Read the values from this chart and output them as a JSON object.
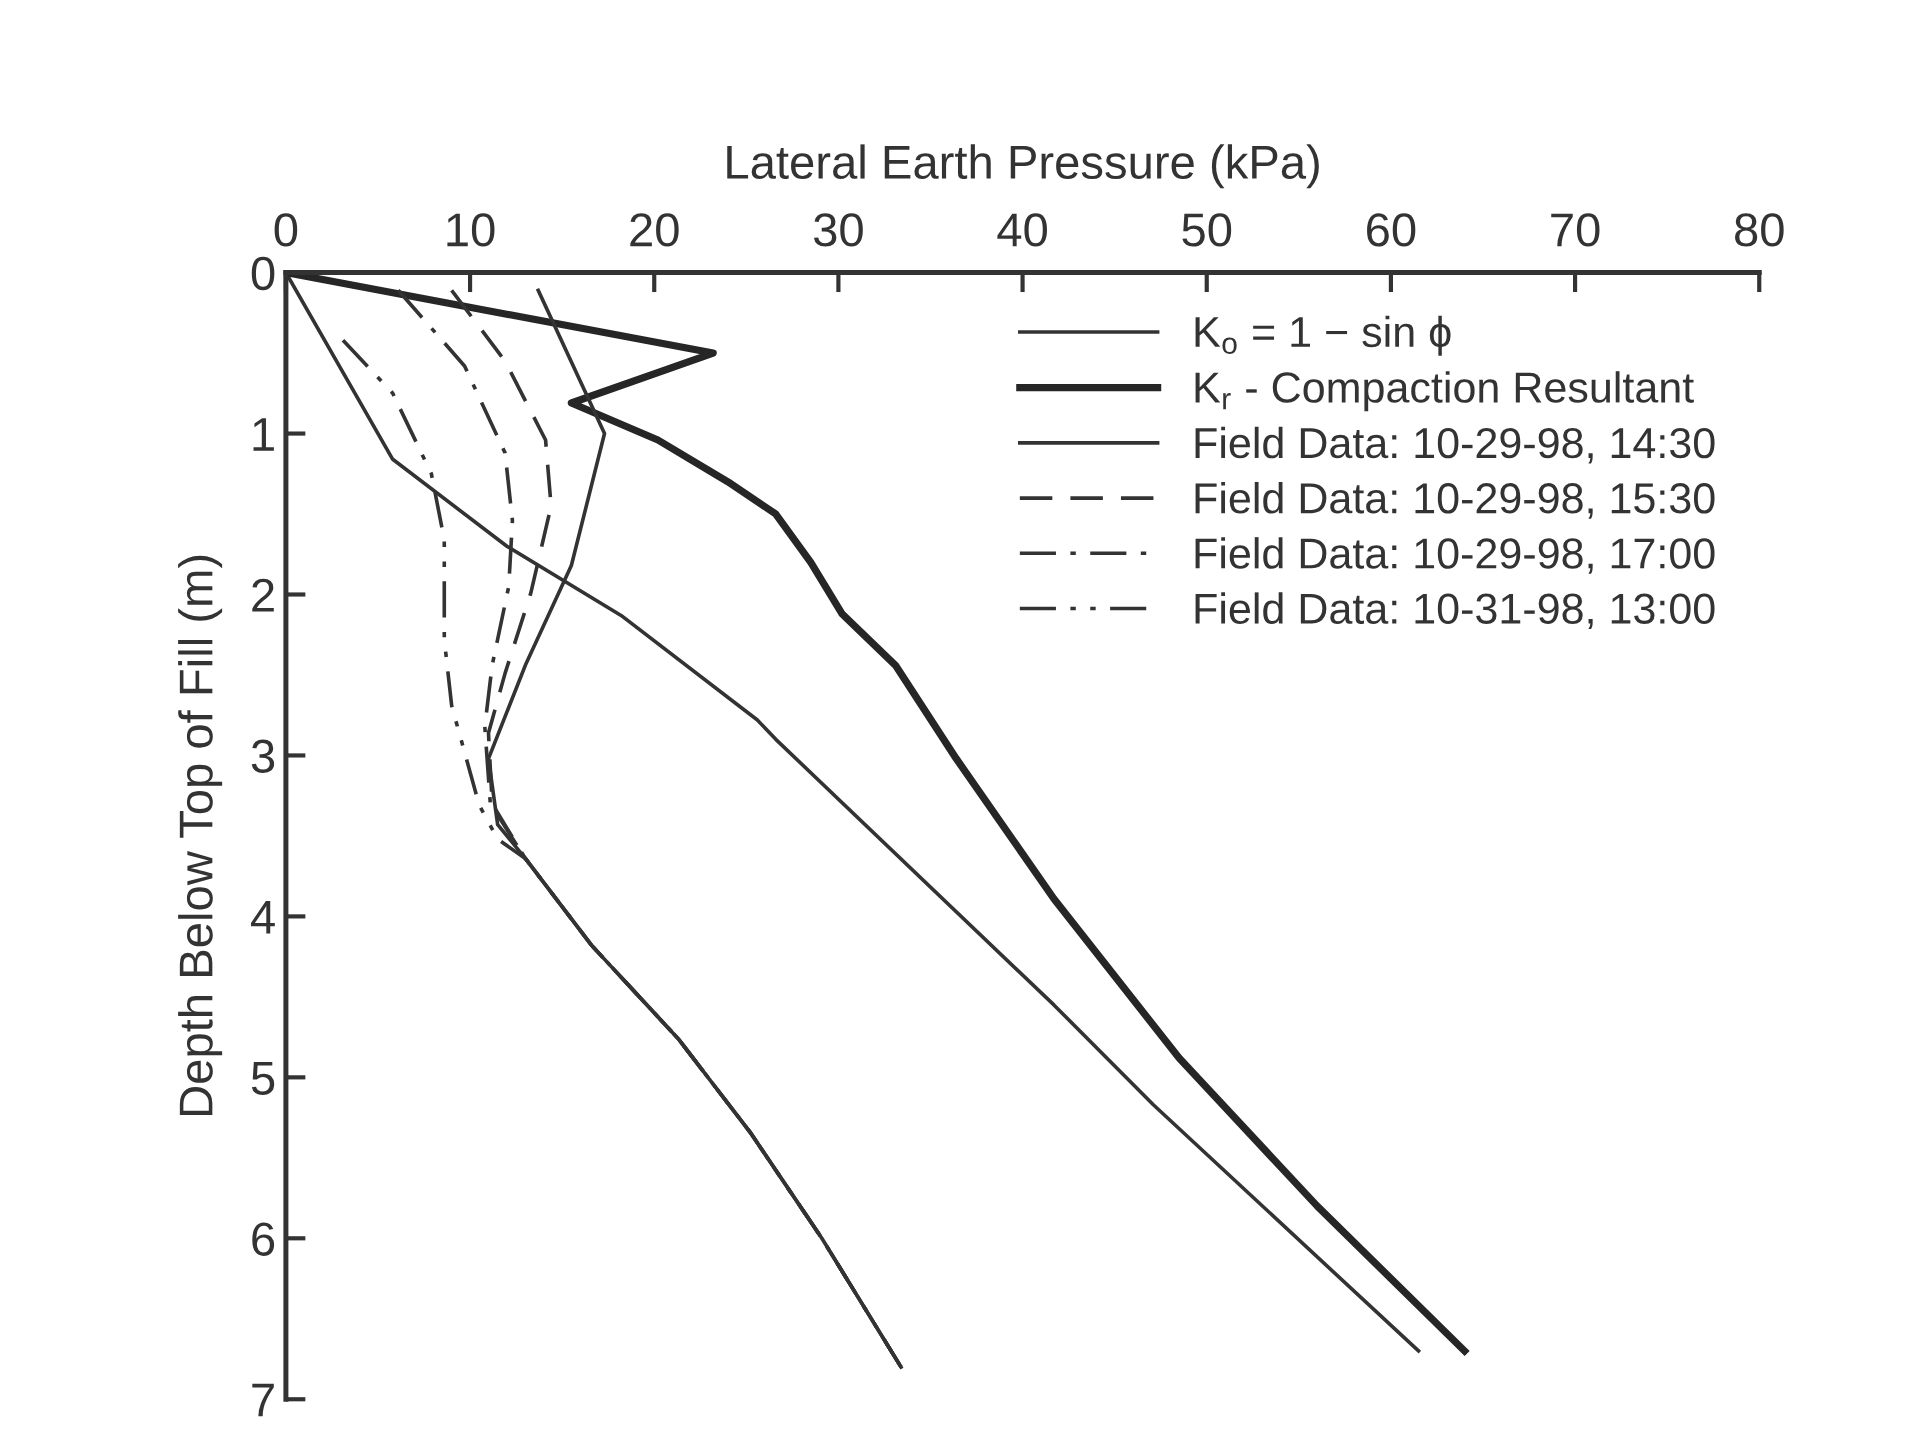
{
  "chart_data": {
    "type": "line",
    "xlabel": "Lateral Earth Pressure (kPa)",
    "ylabel": "Depth Below Top of Fill (m)",
    "xlim": [
      0,
      80
    ],
    "xticks": [
      0,
      10,
      20,
      30,
      40,
      50,
      60,
      70,
      80
    ],
    "ylim": [
      7,
      0
    ],
    "yticks": [
      0,
      1,
      2,
      3,
      4,
      5,
      6,
      7
    ],
    "grid": false,
    "legend": "top right",
    "marker": "none",
    "series": [
      {
        "name": "K$_{o}$ = 1 − sin ϕ",
        "color": "#333333",
        "line_style": "solid",
        "x": [
          0,
          5.8,
          12,
          18.2,
          25.6,
          26.6,
          41.7,
          47.1,
          61.5
        ],
        "values": [
          0,
          1.16,
          1.7,
          2.13,
          2.78,
          2.9,
          4.55,
          5.17,
          6.7
        ]
      },
      {
        "name": "K$_{r}$ - Compaction Resultant",
        "color": "#262626",
        "line_style": "solid",
        "x": [
          0,
          23.2,
          15.5,
          20.2,
          24,
          26.6,
          28.5,
          30.2,
          33.1,
          36.4,
          41.7,
          48.5,
          56,
          64
        ],
        "values": [
          0,
          0.5,
          0.81,
          1.04,
          1.3,
          1.5,
          1.8,
          2.12,
          2.44,
          3.02,
          3.89,
          4.88,
          5.8,
          6.7
        ]
      },
      {
        "name": "Field Data: 10-29-98, 14:30",
        "color": "#333333",
        "line_style": "solid",
        "x": [
          13.7,
          17.3,
          15.5,
          13.0,
          11.0,
          11.5,
          13.0,
          16.6,
          21.3,
          25.2,
          29.1,
          33.4
        ],
        "values": [
          0.11,
          1.0,
          1.82,
          2.44,
          3.02,
          3.43,
          3.64,
          4.18,
          4.76,
          5.34,
          6.0,
          6.8
        ]
      },
      {
        "name": "Field Data: 10-29-98, 15:30",
        "color": "#333333",
        "line_style": "dashed",
        "x": [
          9.0,
          11.9,
          14.1,
          14.4,
          13.3,
          11.9,
          11.0,
          11.2,
          13.0,
          16.6,
          21.3,
          25.2,
          29.1,
          33.4
        ],
        "values": [
          0.11,
          0.55,
          1.04,
          1.45,
          1.99,
          2.49,
          2.86,
          3.3,
          3.64,
          4.18,
          4.76,
          5.34,
          6.0,
          6.8
        ]
      },
      {
        "name": "Field Data: 10-29-98, 17:00",
        "color": "#333333",
        "line_style": "dashdot",
        "x": [
          6.1,
          9.7,
          11.9,
          12.3,
          12.1,
          11.2,
          10.8,
          11.1,
          13.0,
          16.6,
          21.3,
          25.2,
          29.1,
          33.4
        ],
        "values": [
          0.11,
          0.58,
          1.12,
          1.54,
          1.95,
          2.44,
          2.82,
          3.3,
          3.64,
          4.18,
          4.76,
          5.34,
          6.0,
          6.8
        ]
      },
      {
        "name": "Field Data: 10-31-98, 13:00",
        "color": "#333333",
        "line_style": "dashdotdot",
        "x": [
          3.1,
          5.8,
          7.9,
          8.6,
          8.6,
          9.0,
          10.5,
          11.5,
          13.0,
          16.6,
          21.3,
          25.2,
          29.1,
          33.4
        ],
        "values": [
          0.42,
          0.75,
          1.25,
          1.66,
          2.28,
          2.69,
          3.31,
          3.52,
          3.64,
          4.18,
          4.76,
          5.34,
          6.0,
          6.8
        ]
      }
    ]
  }
}
